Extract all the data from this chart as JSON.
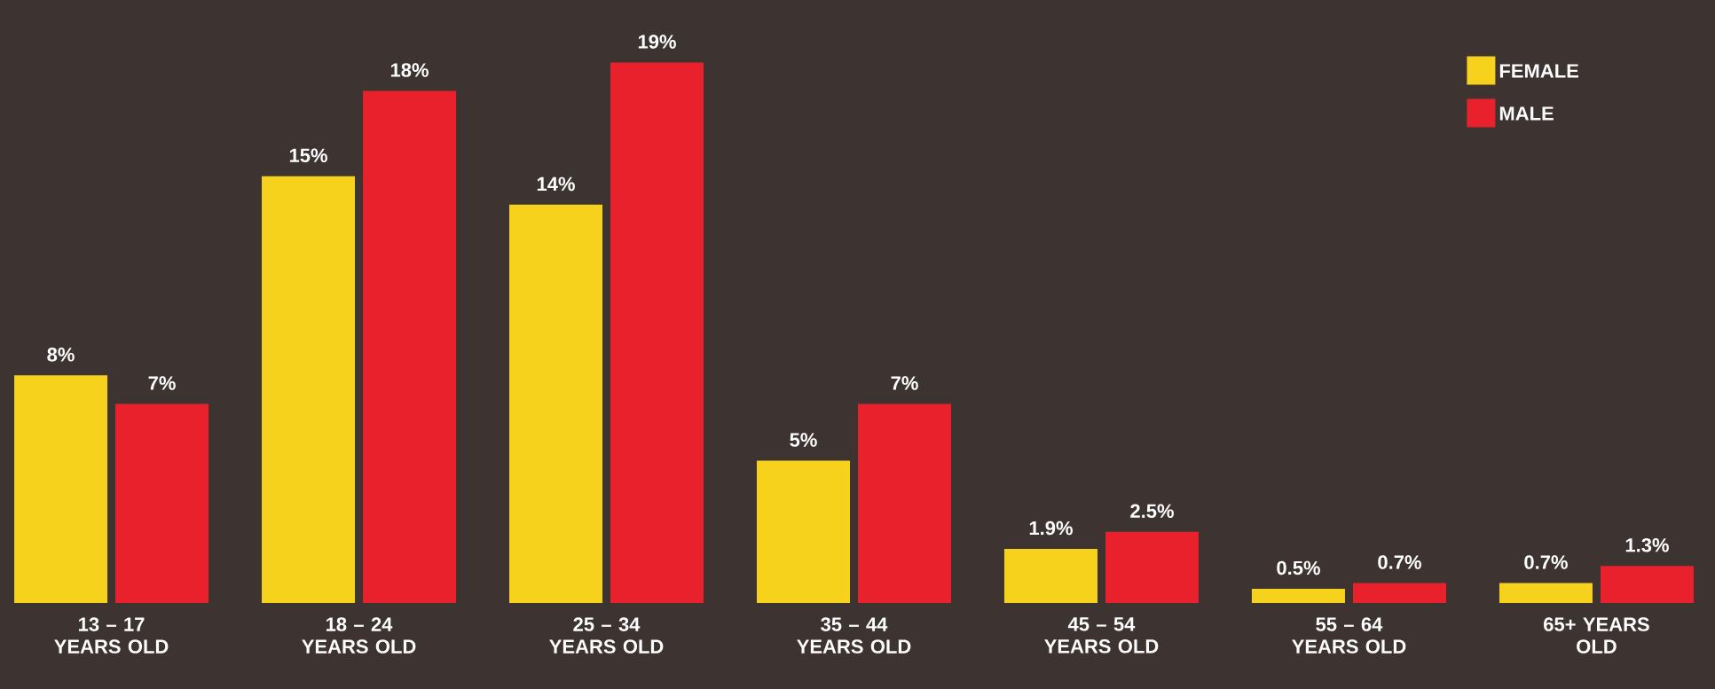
{
  "chart_data": {
    "type": "bar",
    "categories": [
      "13 – 17 YEARS OLD",
      "18 – 24 YEARS OLD",
      "25 – 34 YEARS OLD",
      "35 – 44 YEARS OLD",
      "45 – 54 YEARS OLD",
      "55 – 64 YEARS OLD",
      "65+ YEARS OLD"
    ],
    "series": [
      {
        "name": "FEMALE",
        "color": "#f7d21c",
        "values": [
          8,
          15,
          14,
          5,
          1.9,
          0.5,
          0.7
        ],
        "value_labels": [
          "8%",
          "15%",
          "14%",
          "5%",
          "1.9%",
          "0.5%",
          "0.7%"
        ]
      },
      {
        "name": "MALE",
        "color": "#e9212c",
        "values": [
          7,
          18,
          19,
          7,
          2.5,
          0.7,
          1.3
        ],
        "value_labels": [
          "7%",
          "18%",
          "19%",
          "7%",
          "2.5%",
          "0.7%",
          "1.3%"
        ]
      }
    ],
    "legend": "top right"
  }
}
